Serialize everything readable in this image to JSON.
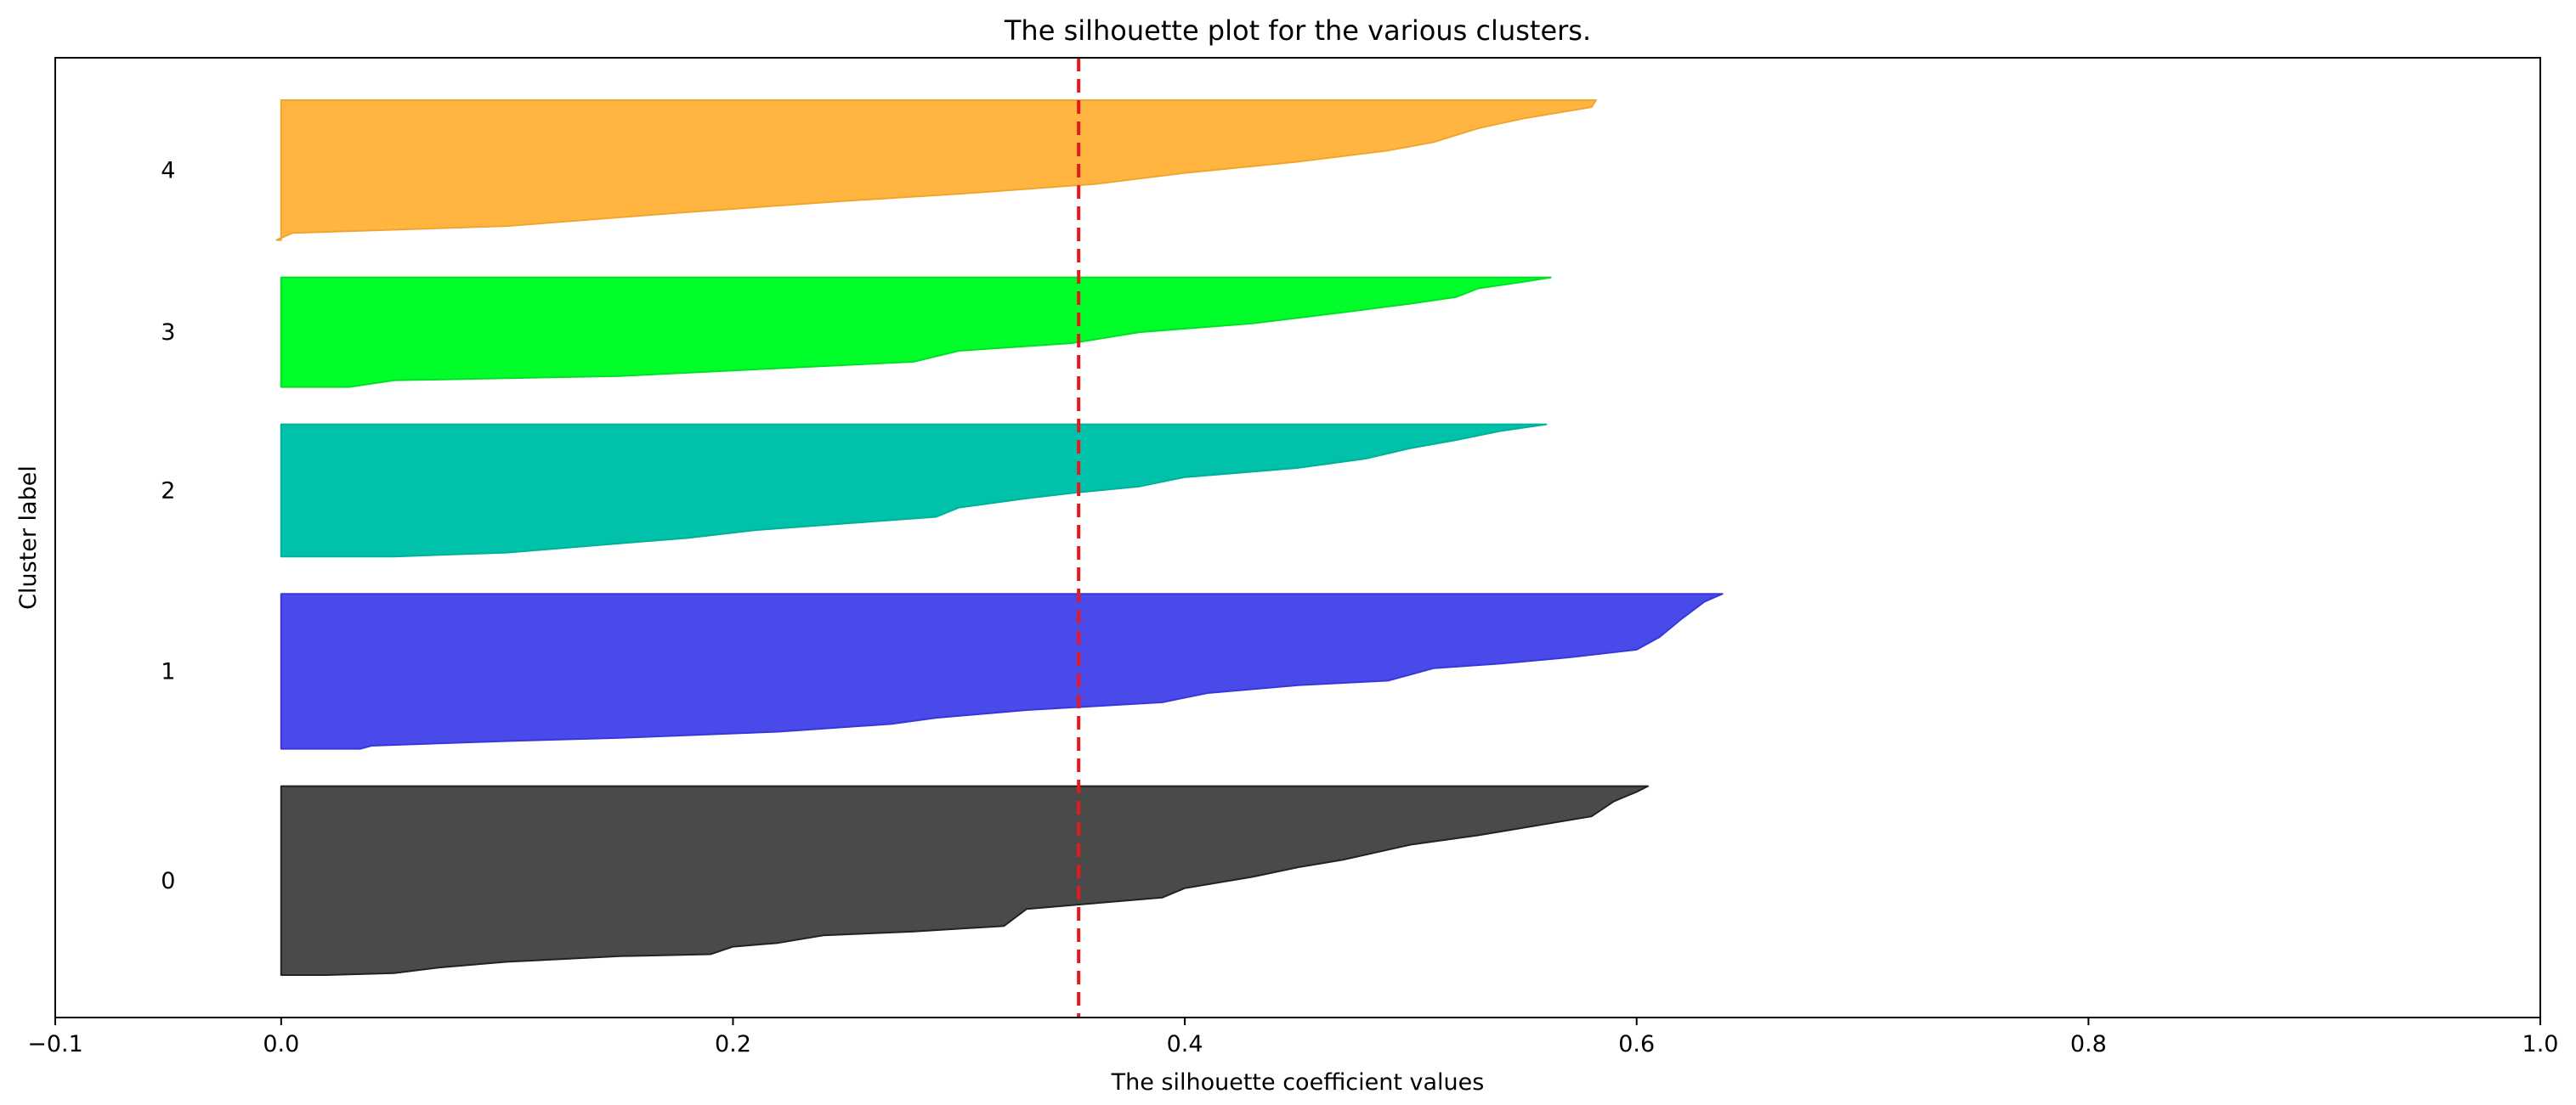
{
  "chart_data": {
    "type": "silhouette",
    "title": "The silhouette plot for the various clusters.",
    "xlabel": "The silhouette coefficient values",
    "ylabel": "Cluster label",
    "xlim": [
      -0.1,
      1.0
    ],
    "xticks": [
      -0.1,
      0.0,
      0.2,
      0.4,
      0.6,
      0.8,
      1.0
    ],
    "xtick_labels": [
      "−0.1",
      "0.0",
      "0.2",
      "0.4",
      "0.6",
      "0.8",
      "1.0"
    ],
    "average_silhouette_score": 0.353,
    "average_line_color": "#e8191c",
    "grid": false,
    "clusters": [
      {
        "label": "0",
        "color": "#4a4a4a",
        "edge_color": "#222222",
        "size": 100,
        "max_value": 0.605,
        "profile": [
          [
            0.0,
            0.0
          ],
          [
            0.02,
            0.0
          ],
          [
            0.05,
            0.01
          ],
          [
            0.07,
            0.04
          ],
          [
            0.1,
            0.07
          ],
          [
            0.15,
            0.1
          ],
          [
            0.19,
            0.11
          ],
          [
            0.2,
            0.15
          ],
          [
            0.22,
            0.17
          ],
          [
            0.24,
            0.21
          ],
          [
            0.28,
            0.23
          ],
          [
            0.32,
            0.26
          ],
          [
            0.33,
            0.35
          ],
          [
            0.35,
            0.37
          ],
          [
            0.39,
            0.41
          ],
          [
            0.4,
            0.46
          ],
          [
            0.43,
            0.52
          ],
          [
            0.45,
            0.57
          ],
          [
            0.47,
            0.61
          ],
          [
            0.5,
            0.69
          ],
          [
            0.53,
            0.74
          ],
          [
            0.55,
            0.78
          ],
          [
            0.58,
            0.84
          ],
          [
            0.59,
            0.92
          ],
          [
            0.6,
            0.97
          ],
          [
            0.605,
            1.0
          ]
        ]
      },
      {
        "label": "1",
        "color": "#4a4aeb",
        "edge_color": "#3838d9",
        "size": 82,
        "max_value": 0.638,
        "profile": [
          [
            0.0,
            0.0
          ],
          [
            0.035,
            0.0
          ],
          [
            0.04,
            0.02
          ],
          [
            0.1,
            0.05
          ],
          [
            0.15,
            0.07
          ],
          [
            0.22,
            0.11
          ],
          [
            0.27,
            0.16
          ],
          [
            0.29,
            0.2
          ],
          [
            0.33,
            0.25
          ],
          [
            0.39,
            0.3
          ],
          [
            0.41,
            0.36
          ],
          [
            0.45,
            0.41
          ],
          [
            0.49,
            0.44
          ],
          [
            0.51,
            0.52
          ],
          [
            0.54,
            0.55
          ],
          [
            0.57,
            0.59
          ],
          [
            0.6,
            0.64
          ],
          [
            0.61,
            0.72
          ],
          [
            0.62,
            0.84
          ],
          [
            0.63,
            0.95
          ],
          [
            0.638,
            1.0
          ]
        ]
      },
      {
        "label": "2",
        "color": "#00c2ab",
        "edge_color": "#00b09a",
        "size": 70,
        "max_value": 0.56,
        "profile": [
          [
            0.0,
            0.0
          ],
          [
            0.05,
            0.0
          ],
          [
            0.1,
            0.03
          ],
          [
            0.15,
            0.1
          ],
          [
            0.18,
            0.14
          ],
          [
            0.21,
            0.2
          ],
          [
            0.25,
            0.25
          ],
          [
            0.29,
            0.3
          ],
          [
            0.3,
            0.37
          ],
          [
            0.33,
            0.44
          ],
          [
            0.35,
            0.48
          ],
          [
            0.38,
            0.53
          ],
          [
            0.4,
            0.6
          ],
          [
            0.45,
            0.67
          ],
          [
            0.48,
            0.74
          ],
          [
            0.5,
            0.82
          ],
          [
            0.52,
            0.88
          ],
          [
            0.54,
            0.95
          ],
          [
            0.56,
            1.0
          ]
        ]
      },
      {
        "label": "3",
        "color": "#00ff2a",
        "edge_color": "#00e026",
        "size": 58,
        "max_value": 0.562,
        "profile": [
          [
            0.0,
            0.0
          ],
          [
            0.03,
            0.0
          ],
          [
            0.05,
            0.06
          ],
          [
            0.15,
            0.1
          ],
          [
            0.22,
            0.17
          ],
          [
            0.28,
            0.23
          ],
          [
            0.3,
            0.33
          ],
          [
            0.35,
            0.4
          ],
          [
            0.38,
            0.5
          ],
          [
            0.43,
            0.58
          ],
          [
            0.47,
            0.68
          ],
          [
            0.5,
            0.76
          ],
          [
            0.52,
            0.82
          ],
          [
            0.53,
            0.9
          ],
          [
            0.55,
            0.96
          ],
          [
            0.562,
            1.0
          ]
        ]
      },
      {
        "label": "4",
        "color": "#ffb53f",
        "edge_color": "#f0a52e",
        "size": 74,
        "max_value": 0.582,
        "profile": [
          [
            -0.002,
            0.0
          ],
          [
            0.005,
            0.05
          ],
          [
            0.1,
            0.1
          ],
          [
            0.18,
            0.2
          ],
          [
            0.25,
            0.28
          ],
          [
            0.3,
            0.33
          ],
          [
            0.36,
            0.4
          ],
          [
            0.4,
            0.48
          ],
          [
            0.45,
            0.56
          ],
          [
            0.49,
            0.64
          ],
          [
            0.51,
            0.7
          ],
          [
            0.53,
            0.8
          ],
          [
            0.55,
            0.87
          ],
          [
            0.58,
            0.95
          ],
          [
            0.582,
            1.0
          ]
        ]
      }
    ]
  }
}
